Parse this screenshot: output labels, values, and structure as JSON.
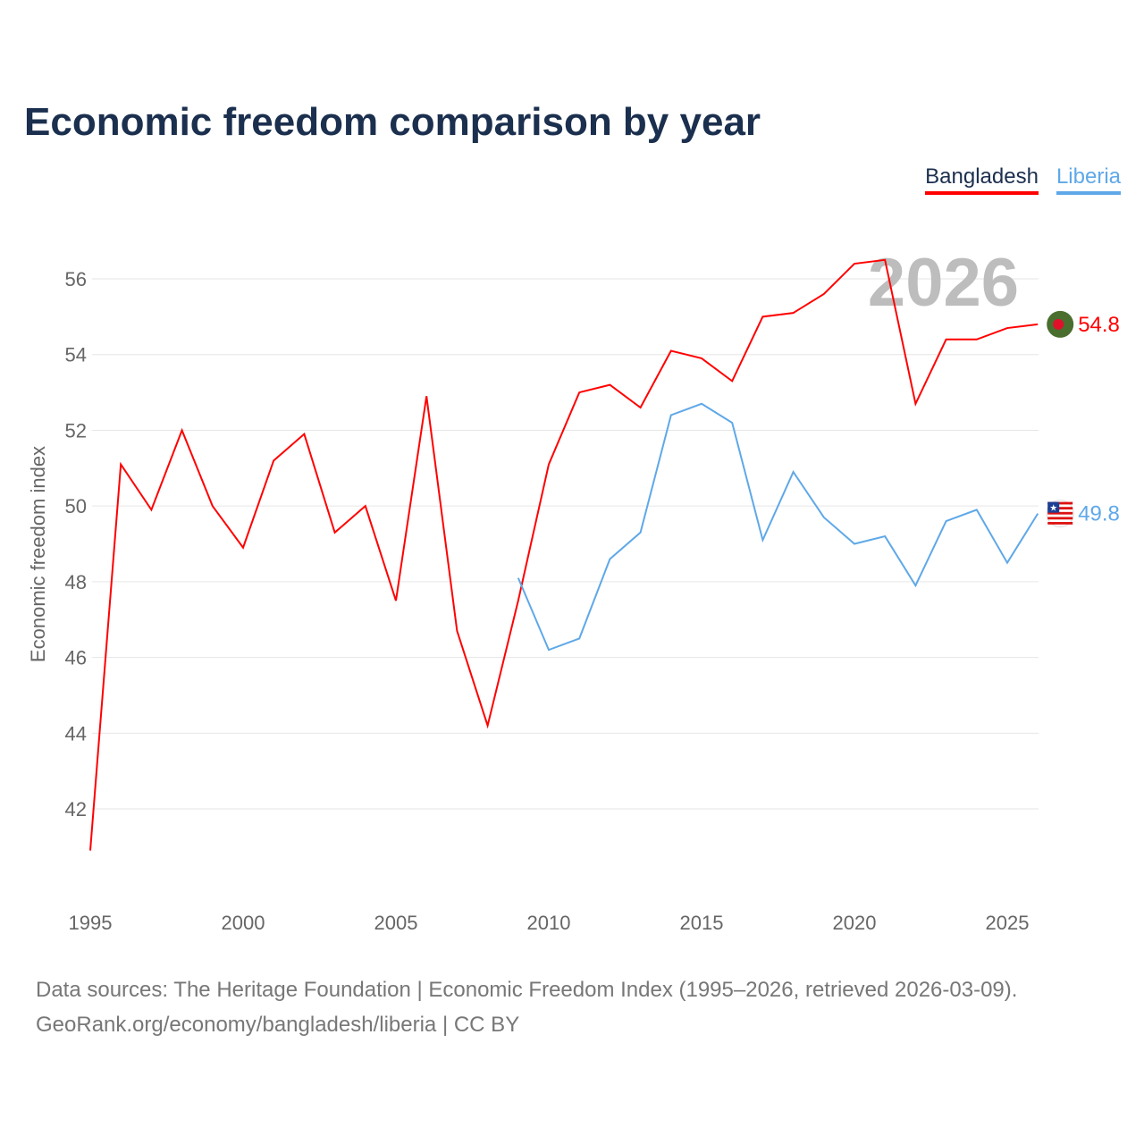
{
  "title": "Economic freedom comparison by year",
  "year_watermark": "2026",
  "source_lines": [
    "Data sources: The Heritage Foundation | Economic Freedom Index (1995–2026, retrieved 2026-03-09).",
    "GeoRank.org/economy/bangladesh/liberia | CC BY"
  ],
  "chart_data": {
    "type": "line",
    "title": "Economic freedom comparison by year",
    "xlabel": "",
    "ylabel": "Economic freedom index",
    "xlim": [
      1995,
      2026
    ],
    "ylim": [
      40.5,
      57.5
    ],
    "yticks": [
      42,
      44,
      46,
      48,
      50,
      52,
      54,
      56
    ],
    "xticks": [
      1995,
      2000,
      2005,
      2010,
      2015,
      2020,
      2025
    ],
    "grid": true,
    "legend_placement": "top-right",
    "series": [
      {
        "name": "Bangladesh",
        "color": "#ff0000",
        "end_label": "54.8",
        "flag_icon": "bangladesh-flag-icon",
        "x": [
          1995,
          1996,
          1997,
          1998,
          1999,
          2000,
          2001,
          2002,
          2003,
          2004,
          2005,
          2006,
          2007,
          2008,
          2009,
          2010,
          2011,
          2012,
          2013,
          2014,
          2015,
          2016,
          2017,
          2018,
          2019,
          2020,
          2021,
          2022,
          2023,
          2024,
          2025,
          2026
        ],
        "values": [
          40.9,
          51.1,
          49.9,
          52.0,
          50.0,
          48.9,
          51.2,
          51.9,
          49.3,
          50.0,
          47.5,
          52.9,
          46.7,
          44.2,
          47.5,
          51.1,
          53.0,
          53.2,
          52.6,
          54.1,
          53.9,
          53.3,
          55.0,
          55.1,
          55.6,
          56.4,
          56.5,
          52.7,
          54.4,
          54.4,
          54.7,
          54.8
        ]
      },
      {
        "name": "Liberia",
        "color": "#5fa8e8",
        "end_label": "49.8",
        "flag_icon": "liberia-flag-icon",
        "x": [
          2009,
          2010,
          2011,
          2012,
          2013,
          2014,
          2015,
          2016,
          2017,
          2018,
          2019,
          2020,
          2021,
          2022,
          2023,
          2024,
          2025,
          2026
        ],
        "values": [
          48.1,
          46.2,
          46.5,
          48.6,
          49.3,
          52.4,
          52.7,
          52.2,
          49.1,
          50.9,
          49.7,
          49.0,
          49.2,
          47.9,
          49.6,
          49.9,
          48.5,
          49.8
        ]
      }
    ]
  }
}
